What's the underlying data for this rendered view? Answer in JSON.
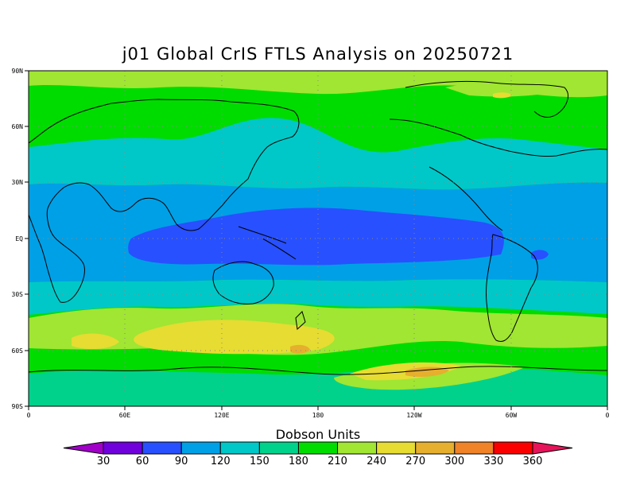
{
  "title": "j01 Global CrIS FTLS Analysis on 20250721",
  "units_label": "Dobson Units",
  "lat_ticks": [
    "90N",
    "60N",
    "30N",
    "EQ",
    "30S",
    "60S",
    "90S"
  ],
  "lon_ticks": [
    "0",
    "60E",
    "120E",
    "180",
    "120W",
    "60W",
    "0"
  ],
  "colorbar": {
    "levels": [
      "30",
      "60",
      "90",
      "120",
      "150",
      "180",
      "210",
      "240",
      "270",
      "300",
      "330",
      "360"
    ],
    "colors": [
      "#a000c8",
      "#7000dc",
      "#2850ff",
      "#00a0e6",
      "#00c8c8",
      "#00d28c",
      "#00dc00",
      "#a0e632",
      "#e6dc32",
      "#e6af2d",
      "#f08228",
      "#fa0000",
      "#e6145a"
    ]
  }
}
